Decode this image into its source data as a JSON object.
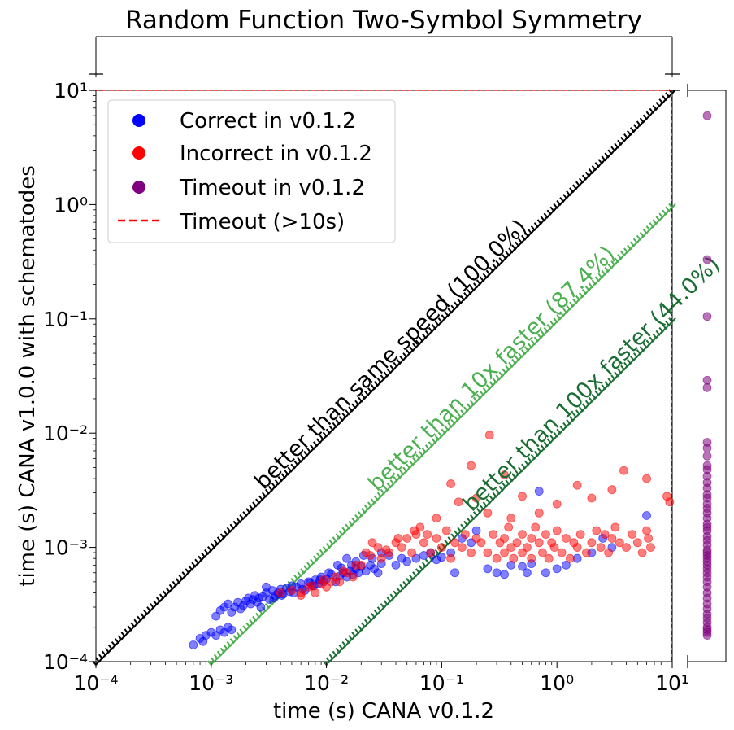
{
  "chart_data": {
    "type": "scatter",
    "title": "Random Function Two-Symbol Symmetry",
    "xlabel": "time (s) CANA v0.1.2",
    "ylabel": "time (s) CANA v1.0.0 with schematodes",
    "xscale": "log",
    "yscale": "log",
    "xlim": [
      0.0001,
      10
    ],
    "ylim": [
      0.0001,
      10
    ],
    "x_tick_labels": [
      "10⁻⁴",
      "10⁻³",
      "10⁻²",
      "10⁻¹",
      "10⁰",
      "10¹"
    ],
    "y_tick_labels": [
      "10⁻⁴",
      "10⁻³",
      "10⁻²",
      "10⁻¹",
      "10⁰",
      "10¹"
    ],
    "legend": {
      "placement": "upper-left",
      "entries": [
        {
          "label": "Correct in v0.1.2",
          "color": "#0000ff",
          "marker": "circle"
        },
        {
          "label": "Incorrect in v0.1.2",
          "color": "#ff0000",
          "marker": "circle"
        },
        {
          "label": "Timeout in v0.1.2",
          "color": "#800080",
          "marker": "circle"
        },
        {
          "label": "Timeout (>10s)",
          "color": "#ff0000",
          "marker": "dashed-line"
        }
      ]
    },
    "timeout_seconds": 10,
    "reference_lines": [
      {
        "label": "better than same speed (100.0%)",
        "factor": 1,
        "color": "#000000"
      },
      {
        "label": "better than 10x faster (87.4%)",
        "factor": 10,
        "color": "#4caf50"
      },
      {
        "label": "better than 100x faster (44.0%)",
        "factor": 100,
        "color": "#1b6e33"
      }
    ],
    "series": [
      {
        "name": "Correct in v0.1.2",
        "color": "#0000ff",
        "points": [
          [
            0.0007,
            0.00014
          ],
          [
            0.0008,
            0.00016
          ],
          [
            0.00085,
            0.00015
          ],
          [
            0.0009,
            0.00017
          ],
          [
            0.001,
            0.00018
          ],
          [
            0.0011,
            0.00017
          ],
          [
            0.0012,
            0.00019
          ],
          [
            0.0013,
            0.00018
          ],
          [
            0.0014,
            0.0002
          ],
          [
            0.0015,
            0.00019
          ],
          [
            0.0011,
            0.00025
          ],
          [
            0.0012,
            0.00028
          ],
          [
            0.0013,
            0.0003
          ],
          [
            0.0014,
            0.00032
          ],
          [
            0.0015,
            0.00027
          ],
          [
            0.0016,
            0.0003
          ],
          [
            0.0017,
            0.00033
          ],
          [
            0.0018,
            0.00029
          ],
          [
            0.0019,
            0.00031
          ],
          [
            0.002,
            0.00034
          ],
          [
            0.0021,
            0.00036
          ],
          [
            0.0022,
            0.00032
          ],
          [
            0.0023,
            0.00035
          ],
          [
            0.0024,
            0.00038
          ],
          [
            0.0025,
            0.00033
          ],
          [
            0.0026,
            0.00036
          ],
          [
            0.0027,
            0.0003
          ],
          [
            0.0028,
            0.00037
          ],
          [
            0.003,
            0.0004
          ],
          [
            0.0032,
            0.00035
          ],
          [
            0.0034,
            0.00042
          ],
          [
            0.0036,
            0.00038
          ],
          [
            0.0038,
            0.0004
          ],
          [
            0.004,
            0.00043
          ],
          [
            0.0042,
            0.00039
          ],
          [
            0.0045,
            0.00044
          ],
          [
            0.0048,
            0.00041
          ],
          [
            0.005,
            0.00046
          ],
          [
            0.0052,
            0.0004
          ],
          [
            0.0055,
            0.00045
          ],
          [
            0.006,
            0.00048
          ],
          [
            0.0065,
            0.00042
          ],
          [
            0.007,
            0.0005
          ],
          [
            0.0075,
            0.00046
          ],
          [
            0.008,
            0.00052
          ],
          [
            0.0085,
            0.00048
          ],
          [
            0.009,
            0.00055
          ],
          [
            0.0095,
            0.0005
          ],
          [
            0.01,
            0.00053
          ],
          [
            0.011,
            0.00058
          ],
          [
            0.012,
            0.0005
          ],
          [
            0.013,
            0.00056
          ],
          [
            0.014,
            0.0006
          ],
          [
            0.015,
            0.00055
          ],
          [
            0.016,
            0.00062
          ],
          [
            0.017,
            0.00058
          ],
          [
            0.018,
            0.00065
          ],
          [
            0.019,
            0.0006
          ],
          [
            0.02,
            0.00068
          ],
          [
            0.022,
            0.00062
          ],
          [
            0.024,
            0.0007
          ],
          [
            0.026,
            0.00065
          ],
          [
            0.028,
            0.0006
          ],
          [
            0.03,
            0.00072
          ],
          [
            0.015,
            0.0008
          ],
          [
            0.018,
            0.00075
          ],
          [
            0.021,
            0.00085
          ],
          [
            0.025,
            0.0008
          ],
          [
            0.03,
            0.0009
          ],
          [
            0.035,
            0.00085
          ],
          [
            0.04,
            0.0007
          ],
          [
            0.045,
            0.0008
          ],
          [
            0.05,
            0.00075
          ],
          [
            0.06,
            0.0008
          ],
          [
            0.07,
            0.00085
          ],
          [
            0.08,
            0.0009
          ],
          [
            0.09,
            0.00078
          ],
          [
            0.1,
            0.00082
          ],
          [
            0.12,
            0.0009
          ],
          [
            0.13,
            0.0006
          ],
          [
            0.15,
            0.0012
          ],
          [
            0.18,
            0.0011
          ],
          [
            0.2,
            0.0014
          ],
          [
            0.25,
            0.00065
          ],
          [
            0.3,
            0.0006
          ],
          [
            0.35,
            0.00058
          ],
          [
            0.4,
            0.0007
          ],
          [
            0.5,
            0.00068
          ],
          [
            0.55,
            0.0006
          ],
          [
            0.6,
            0.00072
          ],
          [
            0.8,
            0.0006
          ],
          [
            1.0,
            0.00065
          ],
          [
            1.2,
            0.0007
          ],
          [
            1.5,
            0.0008
          ],
          [
            2.0,
            0.0009
          ],
          [
            2.5,
            0.0012
          ],
          [
            3.0,
            0.001
          ],
          [
            6.0,
            0.0019
          ],
          [
            0.7,
            0.0031
          ],
          [
            0.003,
            0.00045
          ],
          [
            0.0035,
            0.00036
          ],
          [
            0.0041,
            0.00038
          ],
          [
            0.0062,
            0.00043
          ],
          [
            0.0072,
            0.00049
          ],
          [
            0.0078,
            0.00046
          ],
          [
            0.0088,
            0.00052
          ],
          [
            0.0105,
            0.0006
          ],
          [
            0.0125,
            0.0007
          ],
          [
            0.0135,
            0.00066
          ],
          [
            0.0165,
            0.0007
          ]
        ]
      },
      {
        "name": "Incorrect in v0.1.2",
        "color": "#ff0000",
        "points": [
          [
            0.004,
            0.0004
          ],
          [
            0.005,
            0.00042
          ],
          [
            0.006,
            0.00038
          ],
          [
            0.007,
            0.00045
          ],
          [
            0.008,
            0.0004
          ],
          [
            0.009,
            0.00048
          ],
          [
            0.01,
            0.00045
          ],
          [
            0.011,
            0.0005
          ],
          [
            0.012,
            0.00055
          ],
          [
            0.013,
            0.0005
          ],
          [
            0.015,
            0.0006
          ],
          [
            0.017,
            0.00055
          ],
          [
            0.02,
            0.0007
          ],
          [
            0.022,
            0.0009
          ],
          [
            0.025,
            0.0011
          ],
          [
            0.028,
            0.001
          ],
          [
            0.03,
            0.0008
          ],
          [
            0.035,
            0.0009
          ],
          [
            0.04,
            0.0011
          ],
          [
            0.045,
            0.001
          ],
          [
            0.05,
            0.0012
          ],
          [
            0.055,
            0.0009
          ],
          [
            0.06,
            0.0013
          ],
          [
            0.07,
            0.0011
          ],
          [
            0.08,
            0.0009
          ],
          [
            0.09,
            0.0012
          ],
          [
            0.1,
            0.001
          ],
          [
            0.11,
            0.0014
          ],
          [
            0.12,
            0.0008
          ],
          [
            0.13,
            0.0011
          ],
          [
            0.15,
            0.001
          ],
          [
            0.16,
            0.0013
          ],
          [
            0.18,
            0.0009
          ],
          [
            0.2,
            0.0012
          ],
          [
            0.2,
            0.0027
          ],
          [
            0.22,
            0.0011
          ],
          [
            0.25,
            0.0009
          ],
          [
            0.25,
            0.002
          ],
          [
            0.28,
            0.0013
          ],
          [
            0.3,
            0.0008
          ],
          [
            0.32,
            0.0011
          ],
          [
            0.35,
            0.0009
          ],
          [
            0.35,
            0.0012
          ],
          [
            0.38,
            0.0015
          ],
          [
            0.4,
            0.001
          ],
          [
            0.4,
            0.0018
          ],
          [
            0.42,
            0.0008
          ],
          [
            0.45,
            0.0011
          ],
          [
            0.5,
            0.0009
          ],
          [
            0.5,
            0.0013
          ],
          [
            0.55,
            0.001
          ],
          [
            0.6,
            0.0008
          ],
          [
            0.6,
            0.0012
          ],
          [
            0.65,
            0.0015
          ],
          [
            0.7,
            0.0011
          ],
          [
            0.75,
            0.0009
          ],
          [
            0.8,
            0.0013
          ],
          [
            0.85,
            0.0008
          ],
          [
            0.9,
            0.0011
          ],
          [
            0.95,
            0.001
          ],
          [
            1.0,
            0.0014
          ],
          [
            1.1,
            0.0009
          ],
          [
            1.2,
            0.0012
          ],
          [
            1.3,
            0.0008
          ],
          [
            1.4,
            0.0011
          ],
          [
            1.5,
            0.001
          ],
          [
            1.6,
            0.0013
          ],
          [
            1.8,
            0.0009
          ],
          [
            2.0,
            0.0011
          ],
          [
            2.2,
            0.0014
          ],
          [
            2.4,
            0.001
          ],
          [
            2.6,
            0.0013
          ],
          [
            2.8,
            0.0009
          ],
          [
            3.0,
            0.0012
          ],
          [
            3.2,
            0.0015
          ],
          [
            3.5,
            0.0011
          ],
          [
            3.8,
            0.0047
          ],
          [
            4.0,
            0.001
          ],
          [
            4.5,
            0.0013
          ],
          [
            5.0,
            0.0011
          ],
          [
            5.5,
            0.0009
          ],
          [
            6.0,
            0.0014
          ],
          [
            6.0,
            0.004
          ],
          [
            6.2,
            0.0012
          ],
          [
            6.5,
            0.001
          ],
          [
            9.0,
            0.0028
          ],
          [
            9.5,
            0.0025
          ],
          [
            0.12,
            0.0036
          ],
          [
            0.18,
            0.0052
          ],
          [
            0.26,
            0.0096
          ],
          [
            0.35,
            0.0043
          ],
          [
            0.5,
            0.0028
          ],
          [
            1.0,
            0.0024
          ],
          [
            2.0,
            0.0027
          ],
          [
            3.0,
            0.0032
          ],
          [
            0.7,
            0.002
          ],
          [
            1.5,
            0.0035
          ],
          [
            0.09,
            0.0018
          ],
          [
            0.065,
            0.0015
          ],
          [
            0.14,
            0.0025
          ],
          [
            0.006,
            0.0004
          ],
          [
            0.0075,
            0.00046
          ],
          [
            0.0095,
            0.00052
          ],
          [
            0.014,
            0.00062
          ],
          [
            0.018,
            0.0007
          ],
          [
            0.024,
            0.00085
          ],
          [
            0.033,
            0.00095
          ],
          [
            0.042,
            0.0012
          ],
          [
            0.058,
            0.0014
          ],
          [
            0.075,
            0.0013
          ]
        ]
      },
      {
        "name": "Timeout in v0.1.2",
        "color": "#800080",
        "points": [
          [
            20,
            6.0
          ],
          [
            20,
            0.33
          ],
          [
            20,
            0.105
          ],
          [
            20,
            0.029
          ],
          [
            20,
            0.025
          ],
          [
            20,
            0.0083
          ],
          [
            20,
            0.0074
          ],
          [
            20,
            0.0063
          ],
          [
            20,
            0.0052
          ],
          [
            20,
            0.0048
          ],
          [
            20,
            0.0042
          ],
          [
            20,
            0.0037
          ],
          [
            20,
            0.0033
          ],
          [
            20,
            0.0029
          ],
          [
            20,
            0.0027
          ],
          [
            20,
            0.0024
          ],
          [
            20,
            0.0022
          ],
          [
            20,
            0.002
          ],
          [
            20,
            0.0018
          ],
          [
            20,
            0.0016
          ],
          [
            20,
            0.0015
          ],
          [
            20,
            0.0014
          ],
          [
            20,
            0.00125
          ],
          [
            20,
            0.00115
          ],
          [
            20,
            0.00105
          ],
          [
            20,
            0.00095
          ],
          [
            20,
            0.0009
          ],
          [
            20,
            0.00085
          ],
          [
            20,
            0.0008
          ],
          [
            20,
            0.00075
          ],
          [
            20,
            0.0007
          ],
          [
            20,
            0.00065
          ],
          [
            20,
            0.0006
          ],
          [
            20,
            0.00055
          ],
          [
            20,
            0.0005
          ],
          [
            20,
            0.00045
          ],
          [
            20,
            0.0004
          ],
          [
            20,
            0.00036
          ],
          [
            20,
            0.00032
          ],
          [
            20,
            0.00029
          ],
          [
            20,
            0.00026
          ],
          [
            20,
            0.00024
          ],
          [
            20,
            0.00022
          ],
          [
            20,
            0.0002
          ],
          [
            20,
            0.00019
          ],
          [
            20,
            0.00018
          ],
          [
            20,
            0.00017
          ]
        ]
      }
    ]
  }
}
